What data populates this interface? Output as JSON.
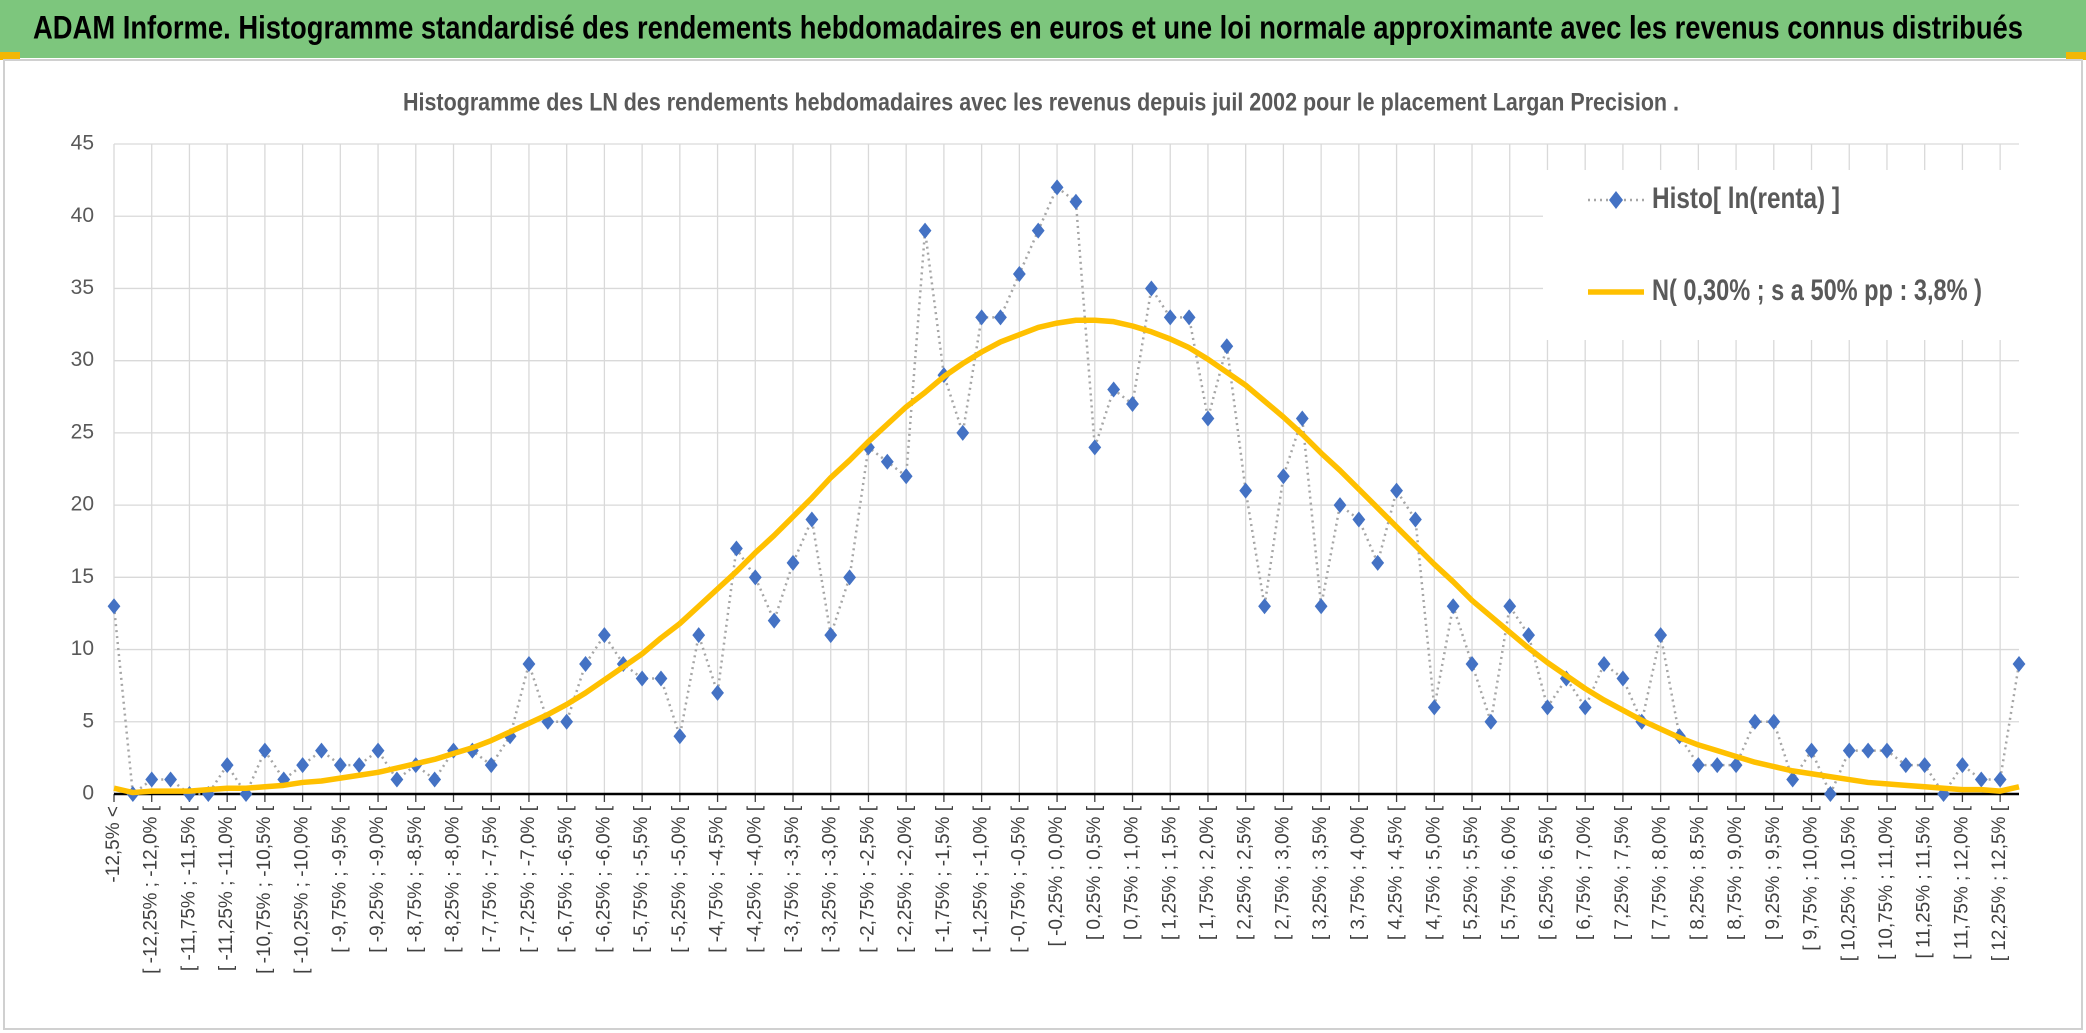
{
  "chart_data": {
    "type": "line",
    "header": "ADAM Informe. Histogramme standardisé des rendements hebdomadaires en euros et une loi normale approximante avec les revenus connus distribués",
    "title": "Histogramme des LN des rendements hebdomadaires avec les revenus depuis juil 2002 pour le placement Largan Precision .",
    "categories": [
      "-12,5% <",
      null,
      "[ -12,25% ; -12,0% [",
      null,
      "[ -11,75% ; -11,5% [",
      null,
      "[ -11,25% ; -11,0% [",
      null,
      "[ -10,75% ; -10,5% [",
      null,
      "[ -10,25% ; -10,0% [",
      null,
      "[ -9,75% ; -9,5% [",
      null,
      "[ -9,25% ; -9,0% [",
      null,
      "[ -8,75% ; -8,5% [",
      null,
      "[ -8,25% ; -8,0% [",
      null,
      "[ -7,75% ; -7,5% [",
      null,
      "[ -7,25% ; -7,0% [",
      null,
      "[ -6,75% ; -6,5% [",
      null,
      "[ -6,25% ; -6,0% [",
      null,
      "[ -5,75% ; -5,5% [",
      null,
      "[ -5,25% ; -5,0% [",
      null,
      "[ -4,75% ; -4,5% [",
      null,
      "[ -4,25% ; -4,0% [",
      null,
      "[ -3,75% ; -3,5% [",
      null,
      "[ -3,25% ; -3,0% [",
      null,
      "[ -2,75% ; -2,5% [",
      null,
      "[ -2,25% ; -2,0% [",
      null,
      "[ -1,75% ; -1,5% [",
      null,
      "[ -1,25% ; -1,0% [",
      null,
      "[ -0,75% ; -0,5% [",
      null,
      "[ -0,25% ; 0,0% [",
      null,
      "[ 0,25% ; 0,5% [",
      null,
      "[ 0,75% ; 1,0% [",
      null,
      "[ 1,25% ; 1,5% [",
      null,
      "[ 1,75% ; 2,0% [",
      null,
      "[ 2,25% ; 2,5% [",
      null,
      "[ 2,75% ; 3,0% [",
      null,
      "[ 3,25% ; 3,5% [",
      null,
      "[ 3,75% ; 4,0% [",
      null,
      "[ 4,25% ; 4,5% [",
      null,
      "[ 4,75% ; 5,0% [",
      null,
      "[ 5,25% ; 5,5% [",
      null,
      "[ 5,75% ; 6,0% [",
      null,
      "[ 6,25% ; 6,5% [",
      null,
      "[ 6,75% ; 7,0% [",
      null,
      "[ 7,25% ; 7,5% [",
      null,
      "[ 7,75% ; 8,0% [",
      null,
      "[ 8,25% ; 8,5% [",
      null,
      "[ 8,75% ; 9,0% [",
      null,
      "[ 9,25% ; 9,5% [",
      null,
      "[ 9,75% ; 10,0% [",
      null,
      "[ 10,25% ; 10,5% [",
      null,
      "[ 10,75% ; 11,0% [",
      null,
      "[ 11,25% ; 11,5% [",
      null,
      "[ 11,75% ; 12,0% [",
      null,
      "[ 12,25% ; 12,5% [",
      null
    ],
    "series": [
      {
        "name": "Histo[ ln(renta) ]",
        "color": "#4472c4",
        "line_color": "#a6a6a6",
        "values": [
          13,
          0,
          1,
          1,
          0,
          0,
          2,
          0,
          3,
          1,
          2,
          3,
          2,
          2,
          3,
          1,
          2,
          1,
          3,
          3,
          2,
          4,
          9,
          5,
          5,
          9,
          11,
          9,
          8,
          8,
          4,
          11,
          7,
          17,
          15,
          12,
          16,
          19,
          11,
          15,
          24,
          23,
          22,
          39,
          29,
          25,
          33,
          33,
          36,
          39,
          42,
          41,
          24,
          28,
          27,
          35,
          33,
          33,
          26,
          31,
          21,
          13,
          22,
          26,
          13,
          20,
          19,
          16,
          21,
          19,
          6,
          13,
          9,
          5,
          13,
          11,
          6,
          8,
          6,
          9,
          8,
          5,
          11,
          4,
          2,
          2,
          2,
          5,
          5,
          1,
          3,
          0,
          3,
          3,
          3,
          2,
          2,
          0,
          2,
          1,
          1,
          9
        ]
      },
      {
        "name": "N( 0,30% ; s a 50% pp : 3,8% )",
        "color": "#ffc000",
        "values": [
          0.4,
          0.1,
          0.2,
          0.2,
          0.2,
          0.3,
          0.4,
          0.4,
          0.5,
          0.6,
          0.8,
          0.9,
          1.1,
          1.3,
          1.5,
          1.8,
          2.1,
          2.4,
          2.8,
          3.2,
          3.7,
          4.3,
          4.9,
          5.5,
          6.2,
          7.0,
          7.9,
          8.8,
          9.7,
          10.8,
          11.8,
          13.0,
          14.2,
          15.4,
          16.7,
          17.9,
          19.2,
          20.5,
          21.9,
          23.1,
          24.4,
          25.6,
          26.8,
          27.8,
          28.9,
          29.8,
          30.6,
          31.3,
          31.8,
          32.3,
          32.6,
          32.8,
          32.8,
          32.7,
          32.4,
          32.0,
          31.5,
          30.9,
          30.1,
          29.2,
          28.3,
          27.2,
          26.1,
          24.9,
          23.6,
          22.4,
          21.1,
          19.8,
          18.5,
          17.2,
          15.9,
          14.7,
          13.4,
          12.3,
          11.2,
          10.1,
          9.1,
          8.2,
          7.3,
          6.5,
          5.8,
          5.1,
          4.5,
          3.9,
          3.4,
          3.0,
          2.6,
          2.2,
          1.9,
          1.6,
          1.4,
          1.2,
          1.0,
          0.8,
          0.7,
          0.6,
          0.5,
          0.4,
          0.3,
          0.3,
          0.2,
          0.5
        ]
      }
    ],
    "ylim": [
      0,
      45
    ],
    "yticks": [
      0,
      5,
      10,
      15,
      20,
      25,
      30,
      35,
      40,
      45
    ],
    "grid": true,
    "legend": "upper right"
  }
}
